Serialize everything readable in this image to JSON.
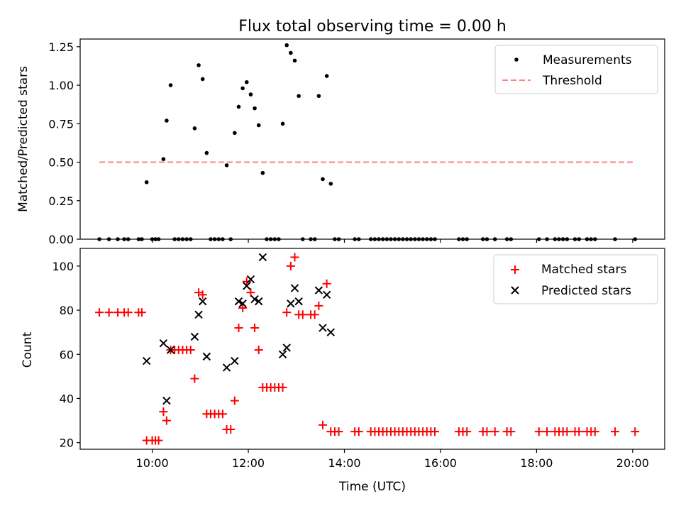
{
  "chart_data": [
    {
      "type": "scatter",
      "title": "Flux total observing time = 0.00 h",
      "xlabel": "",
      "ylabel": "Matched/Predicted stars",
      "xlim": [
        "08:30",
        "20:40"
      ],
      "ylim": [
        0,
        1.3
      ],
      "x_ticks": [
        "10:00",
        "12:00",
        "14:00",
        "16:00",
        "18:00",
        "20:00"
      ],
      "y_ticks": [
        0.0,
        0.25,
        0.5,
        0.75,
        1.0,
        1.25
      ],
      "y_tick_labels": [
        "0.00",
        "0.25",
        "0.50",
        "0.75",
        "1.00",
        "1.25"
      ],
      "legend_position": "top-right",
      "threshold": {
        "name": "Threshold",
        "value": 0.5,
        "x": [
          "08:54",
          "20:03"
        ],
        "color": "#ff8080"
      },
      "series": [
        {
          "name": "Measurements",
          "color": "#000000",
          "points": [
            {
              "x": "08:54",
              "y": 0
            },
            {
              "x": "09:06",
              "y": 0
            },
            {
              "x": "09:17",
              "y": 0
            },
            {
              "x": "09:25",
              "y": 0
            },
            {
              "x": "09:30",
              "y": 0
            },
            {
              "x": "09:43",
              "y": 0
            },
            {
              "x": "09:47",
              "y": 0
            },
            {
              "x": "09:53",
              "y": 0.37
            },
            {
              "x": "10:00",
              "y": 0
            },
            {
              "x": "10:04",
              "y": 0
            },
            {
              "x": "10:08",
              "y": 0
            },
            {
              "x": "10:14",
              "y": 0.52
            },
            {
              "x": "10:18",
              "y": 0.77
            },
            {
              "x": "10:23",
              "y": 1.0
            },
            {
              "x": "10:28",
              "y": 0
            },
            {
              "x": "10:33",
              "y": 0
            },
            {
              "x": "10:38",
              "y": 0
            },
            {
              "x": "10:43",
              "y": 0
            },
            {
              "x": "10:48",
              "y": 0
            },
            {
              "x": "10:53",
              "y": 0.72
            },
            {
              "x": "10:58",
              "y": 1.13
            },
            {
              "x": "11:03",
              "y": 1.04
            },
            {
              "x": "11:08",
              "y": 0.56
            },
            {
              "x": "11:13",
              "y": 0
            },
            {
              "x": "11:18",
              "y": 0
            },
            {
              "x": "11:23",
              "y": 0
            },
            {
              "x": "11:28",
              "y": 0
            },
            {
              "x": "11:33",
              "y": 0.48
            },
            {
              "x": "11:38",
              "y": 0
            },
            {
              "x": "11:43",
              "y": 0.69
            },
            {
              "x": "11:48",
              "y": 0.86
            },
            {
              "x": "11:53",
              "y": 0.98
            },
            {
              "x": "11:58",
              "y": 1.02
            },
            {
              "x": "12:03",
              "y": 0.94
            },
            {
              "x": "12:08",
              "y": 0.85
            },
            {
              "x": "12:13",
              "y": 0.74
            },
            {
              "x": "12:18",
              "y": 0.43
            },
            {
              "x": "12:23",
              "y": 0
            },
            {
              "x": "12:28",
              "y": 0
            },
            {
              "x": "12:33",
              "y": 0
            },
            {
              "x": "12:38",
              "y": 0
            },
            {
              "x": "12:43",
              "y": 0.75
            },
            {
              "x": "12:48",
              "y": 1.26
            },
            {
              "x": "12:53",
              "y": 1.21
            },
            {
              "x": "12:58",
              "y": 1.16
            },
            {
              "x": "13:03",
              "y": 0.93
            },
            {
              "x": "13:08",
              "y": 0
            },
            {
              "x": "13:18",
              "y": 0
            },
            {
              "x": "13:23",
              "y": 0
            },
            {
              "x": "13:28",
              "y": 0.93
            },
            {
              "x": "13:33",
              "y": 0.39
            },
            {
              "x": "13:38",
              "y": 1.06
            },
            {
              "x": "13:43",
              "y": 0.36
            },
            {
              "x": "13:48",
              "y": 0
            },
            {
              "x": "13:53",
              "y": 0
            },
            {
              "x": "14:13",
              "y": 0
            },
            {
              "x": "14:18",
              "y": 0
            },
            {
              "x": "14:33",
              "y": 0
            },
            {
              "x": "14:38",
              "y": 0
            },
            {
              "x": "14:43",
              "y": 0
            },
            {
              "x": "14:48",
              "y": 0
            },
            {
              "x": "14:53",
              "y": 0
            },
            {
              "x": "14:58",
              "y": 0
            },
            {
              "x": "15:03",
              "y": 0
            },
            {
              "x": "15:08",
              "y": 0
            },
            {
              "x": "15:13",
              "y": 0
            },
            {
              "x": "15:18",
              "y": 0
            },
            {
              "x": "15:23",
              "y": 0
            },
            {
              "x": "15:28",
              "y": 0
            },
            {
              "x": "15:33",
              "y": 0
            },
            {
              "x": "15:38",
              "y": 0
            },
            {
              "x": "15:43",
              "y": 0
            },
            {
              "x": "15:48",
              "y": 0
            },
            {
              "x": "15:53",
              "y": 0
            },
            {
              "x": "16:23",
              "y": 0
            },
            {
              "x": "16:28",
              "y": 0
            },
            {
              "x": "16:33",
              "y": 0
            },
            {
              "x": "16:53",
              "y": 0
            },
            {
              "x": "16:58",
              "y": 0
            },
            {
              "x": "17:08",
              "y": 0
            },
            {
              "x": "17:23",
              "y": 0
            },
            {
              "x": "17:28",
              "y": 0
            },
            {
              "x": "18:03",
              "y": 0
            },
            {
              "x": "18:13",
              "y": 0
            },
            {
              "x": "18:23",
              "y": 0
            },
            {
              "x": "18:28",
              "y": 0
            },
            {
              "x": "18:33",
              "y": 0
            },
            {
              "x": "18:38",
              "y": 0
            },
            {
              "x": "18:48",
              "y": 0
            },
            {
              "x": "18:53",
              "y": 0
            },
            {
              "x": "19:03",
              "y": 0
            },
            {
              "x": "19:08",
              "y": 0
            },
            {
              "x": "19:13",
              "y": 0
            },
            {
              "x": "19:38",
              "y": 0
            },
            {
              "x": "20:03",
              "y": 0
            }
          ]
        }
      ]
    },
    {
      "type": "scatter",
      "title": "",
      "xlabel": "Time (UTC)",
      "ylabel": "Count",
      "xlim": [
        "08:30",
        "20:40"
      ],
      "ylim": [
        17,
        108
      ],
      "x_ticks": [
        "10:00",
        "12:00",
        "14:00",
        "16:00",
        "18:00",
        "20:00"
      ],
      "y_ticks": [
        20,
        40,
        60,
        80,
        100
      ],
      "y_tick_labels": [
        "20",
        "40",
        "60",
        "80",
        "100"
      ],
      "legend_position": "top-right",
      "series": [
        {
          "name": "Matched stars",
          "color": "#ff0000",
          "marker": "plus",
          "points": [
            {
              "x": "08:54",
              "y": 79
            },
            {
              "x": "09:06",
              "y": 79
            },
            {
              "x": "09:17",
              "y": 79
            },
            {
              "x": "09:25",
              "y": 79
            },
            {
              "x": "09:30",
              "y": 79
            },
            {
              "x": "09:43",
              "y": 79
            },
            {
              "x": "09:47",
              "y": 79
            },
            {
              "x": "09:53",
              "y": 21
            },
            {
              "x": "10:00",
              "y": 21
            },
            {
              "x": "10:04",
              "y": 21
            },
            {
              "x": "10:08",
              "y": 21
            },
            {
              "x": "10:14",
              "y": 34
            },
            {
              "x": "10:18",
              "y": 30
            },
            {
              "x": "10:23",
              "y": 62
            },
            {
              "x": "10:28",
              "y": 62
            },
            {
              "x": "10:33",
              "y": 62
            },
            {
              "x": "10:38",
              "y": 62
            },
            {
              "x": "10:43",
              "y": 62
            },
            {
              "x": "10:48",
              "y": 62
            },
            {
              "x": "10:53",
              "y": 49
            },
            {
              "x": "10:58",
              "y": 88
            },
            {
              "x": "11:03",
              "y": 87
            },
            {
              "x": "11:08",
              "y": 33
            },
            {
              "x": "11:13",
              "y": 33
            },
            {
              "x": "11:18",
              "y": 33
            },
            {
              "x": "11:23",
              "y": 33
            },
            {
              "x": "11:28",
              "y": 33
            },
            {
              "x": "11:33",
              "y": 26
            },
            {
              "x": "11:38",
              "y": 26
            },
            {
              "x": "11:43",
              "y": 39
            },
            {
              "x": "11:48",
              "y": 72
            },
            {
              "x": "11:53",
              "y": 81
            },
            {
              "x": "11:58",
              "y": 93
            },
            {
              "x": "12:03",
              "y": 88
            },
            {
              "x": "12:08",
              "y": 72
            },
            {
              "x": "12:13",
              "y": 62
            },
            {
              "x": "12:18",
              "y": 45
            },
            {
              "x": "12:23",
              "y": 45
            },
            {
              "x": "12:28",
              "y": 45
            },
            {
              "x": "12:33",
              "y": 45
            },
            {
              "x": "12:38",
              "y": 45
            },
            {
              "x": "12:43",
              "y": 45
            },
            {
              "x": "12:48",
              "y": 79
            },
            {
              "x": "12:53",
              "y": 100
            },
            {
              "x": "12:58",
              "y": 104
            },
            {
              "x": "13:03",
              "y": 78
            },
            {
              "x": "13:08",
              "y": 78
            },
            {
              "x": "13:18",
              "y": 78
            },
            {
              "x": "13:23",
              "y": 78
            },
            {
              "x": "13:28",
              "y": 82
            },
            {
              "x": "13:33",
              "y": 28
            },
            {
              "x": "13:38",
              "y": 92
            },
            {
              "x": "13:43",
              "y": 25
            },
            {
              "x": "13:48",
              "y": 25
            },
            {
              "x": "13:53",
              "y": 25
            },
            {
              "x": "14:13",
              "y": 25
            },
            {
              "x": "14:18",
              "y": 25
            },
            {
              "x": "14:33",
              "y": 25
            },
            {
              "x": "14:38",
              "y": 25
            },
            {
              "x": "14:43",
              "y": 25
            },
            {
              "x": "14:48",
              "y": 25
            },
            {
              "x": "14:53",
              "y": 25
            },
            {
              "x": "14:58",
              "y": 25
            },
            {
              "x": "15:03",
              "y": 25
            },
            {
              "x": "15:08",
              "y": 25
            },
            {
              "x": "15:13",
              "y": 25
            },
            {
              "x": "15:18",
              "y": 25
            },
            {
              "x": "15:23",
              "y": 25
            },
            {
              "x": "15:28",
              "y": 25
            },
            {
              "x": "15:33",
              "y": 25
            },
            {
              "x": "15:38",
              "y": 25
            },
            {
              "x": "15:43",
              "y": 25
            },
            {
              "x": "15:48",
              "y": 25
            },
            {
              "x": "15:53",
              "y": 25
            },
            {
              "x": "16:23",
              "y": 25
            },
            {
              "x": "16:28",
              "y": 25
            },
            {
              "x": "16:33",
              "y": 25
            },
            {
              "x": "16:53",
              "y": 25
            },
            {
              "x": "16:58",
              "y": 25
            },
            {
              "x": "17:08",
              "y": 25
            },
            {
              "x": "17:23",
              "y": 25
            },
            {
              "x": "17:28",
              "y": 25
            },
            {
              "x": "18:03",
              "y": 25
            },
            {
              "x": "18:13",
              "y": 25
            },
            {
              "x": "18:23",
              "y": 25
            },
            {
              "x": "18:28",
              "y": 25
            },
            {
              "x": "18:33",
              "y": 25
            },
            {
              "x": "18:38",
              "y": 25
            },
            {
              "x": "18:48",
              "y": 25
            },
            {
              "x": "18:53",
              "y": 25
            },
            {
              "x": "19:03",
              "y": 25
            },
            {
              "x": "19:08",
              "y": 25
            },
            {
              "x": "19:13",
              "y": 25
            },
            {
              "x": "19:38",
              "y": 25
            },
            {
              "x": "20:03",
              "y": 25
            }
          ]
        },
        {
          "name": "Predicted stars",
          "color": "#000000",
          "marker": "x",
          "points": [
            {
              "x": "09:53",
              "y": 57
            },
            {
              "x": "10:14",
              "y": 65
            },
            {
              "x": "10:18",
              "y": 39
            },
            {
              "x": "10:23",
              "y": 62
            },
            {
              "x": "10:53",
              "y": 68
            },
            {
              "x": "10:58",
              "y": 78
            },
            {
              "x": "11:03",
              "y": 84
            },
            {
              "x": "11:08",
              "y": 59
            },
            {
              "x": "11:33",
              "y": 54
            },
            {
              "x": "11:43",
              "y": 57
            },
            {
              "x": "11:48",
              "y": 84
            },
            {
              "x": "11:53",
              "y": 83
            },
            {
              "x": "11:58",
              "y": 91
            },
            {
              "x": "12:03",
              "y": 94
            },
            {
              "x": "12:08",
              "y": 85
            },
            {
              "x": "12:13",
              "y": 84
            },
            {
              "x": "12:18",
              "y": 104
            },
            {
              "x": "12:43",
              "y": 60
            },
            {
              "x": "12:48",
              "y": 63
            },
            {
              "x": "12:53",
              "y": 83
            },
            {
              "x": "12:58",
              "y": 90
            },
            {
              "x": "13:03",
              "y": 84
            },
            {
              "x": "13:28",
              "y": 89
            },
            {
              "x": "13:33",
              "y": 72
            },
            {
              "x": "13:38",
              "y": 87
            },
            {
              "x": "13:43",
              "y": 70
            }
          ]
        }
      ]
    }
  ]
}
